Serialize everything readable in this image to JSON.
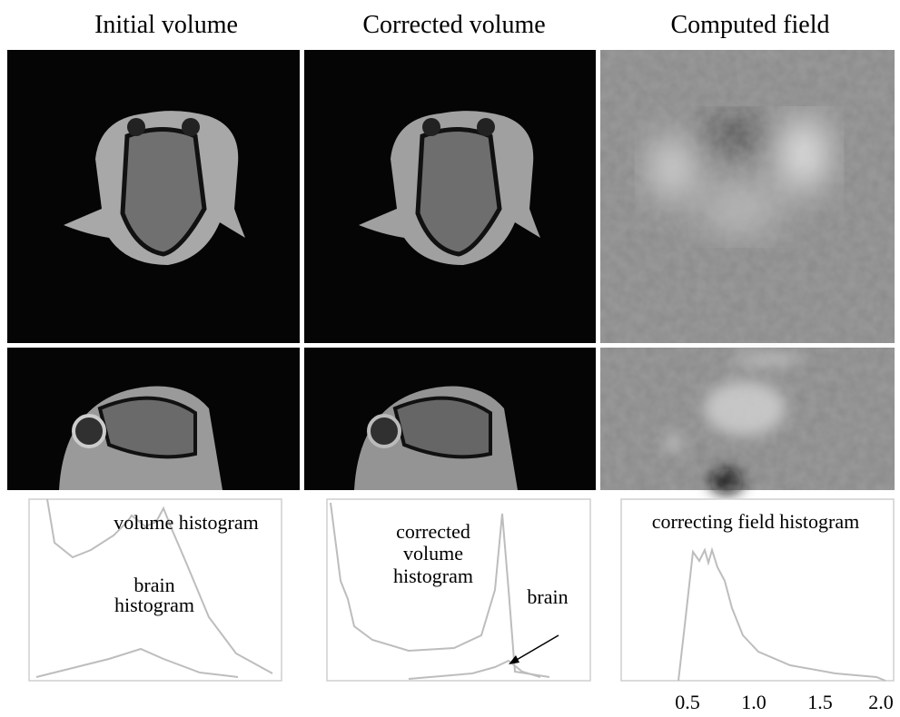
{
  "columns": [
    {
      "title": "Initial volume",
      "histogram_labels": [
        "volume histogram",
        "brain",
        "histogram"
      ]
    },
    {
      "title": "Corrected volume",
      "histogram_labels": [
        "corrected",
        "volume",
        "histogram",
        "brain"
      ]
    },
    {
      "title": "Computed field",
      "histogram_labels": [
        "correcting field histogram"
      ]
    }
  ],
  "field_axis_labels": [
    "0.5",
    "1.0",
    "1.5",
    "2.0"
  ]
}
